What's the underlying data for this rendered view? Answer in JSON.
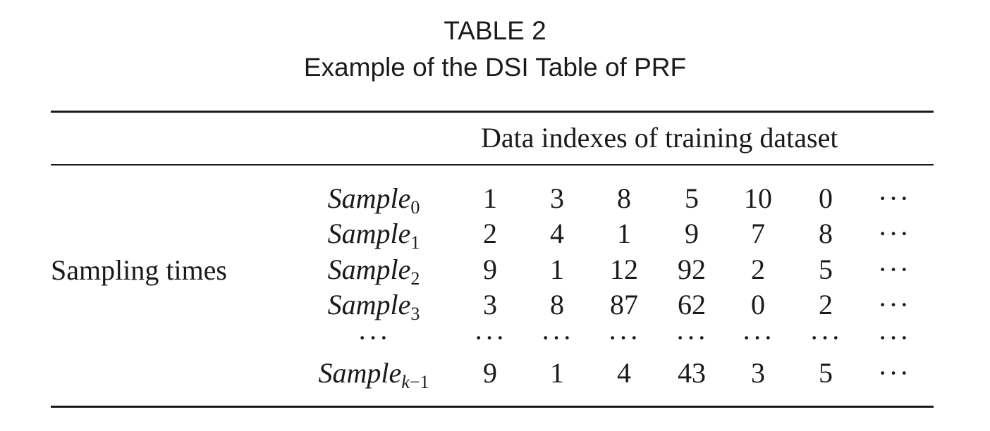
{
  "table": {
    "number": "TABLE 2",
    "title": "Example of the DSI Table of PRF",
    "column_header": "Data indexes of training dataset",
    "row_header": "Sampling times",
    "rows": [
      {
        "label": "Sample",
        "sub": "0",
        "values": [
          "1",
          "3",
          "8",
          "5",
          "10",
          "0",
          "···"
        ]
      },
      {
        "label": "Sample",
        "sub": "1",
        "values": [
          "2",
          "4",
          "1",
          "9",
          "7",
          "8",
          "···"
        ]
      },
      {
        "label": "Sample",
        "sub": "2",
        "values": [
          "9",
          "1",
          "12",
          "92",
          "2",
          "5",
          "···"
        ]
      },
      {
        "label": "Sample",
        "sub": "3",
        "values": [
          "3",
          "8",
          "87",
          "62",
          "0",
          "2",
          "···"
        ]
      },
      {
        "label": "···",
        "sub": "",
        "values": [
          "···",
          "···",
          "···",
          "···",
          "···",
          "···",
          "···"
        ]
      },
      {
        "label": "Sample",
        "sub": "k−1",
        "values": [
          "9",
          "1",
          "4",
          "43",
          "3",
          "5",
          "···"
        ]
      }
    ]
  }
}
